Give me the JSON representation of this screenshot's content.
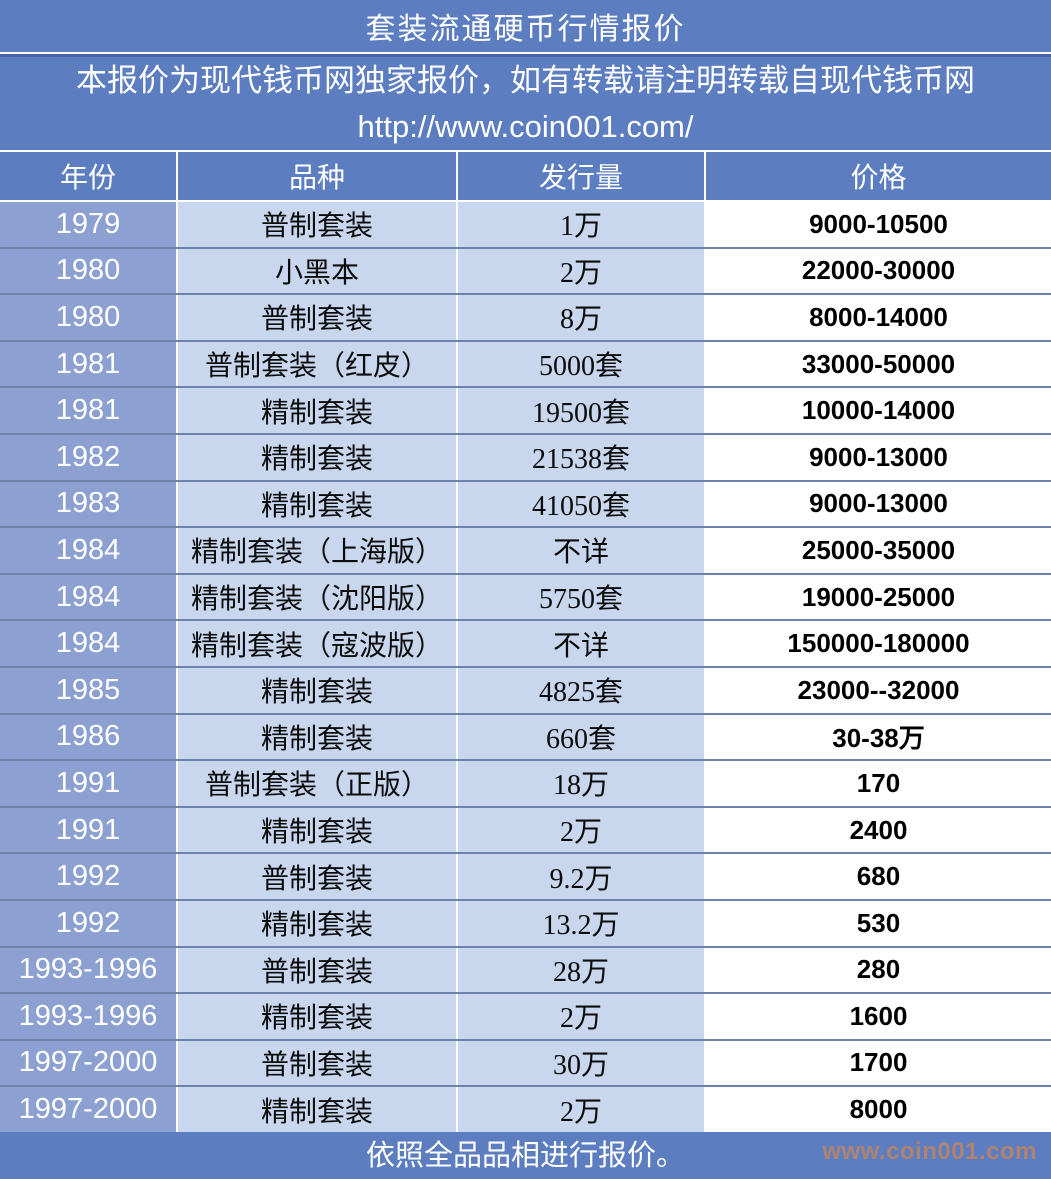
{
  "title": "套装流通硬币行情报价",
  "subtitle": {
    "line1": "本报价为现代钱币网独家报价，如有转载请注明转载自现代钱币网",
    "line2": "http://www.coin001.com/"
  },
  "chart_data": {
    "type": "table",
    "title": "套装流通硬币行情报价",
    "columns": [
      "年份",
      "品种",
      "发行量",
      "价格"
    ],
    "rows": [
      [
        "1979",
        "普制套装",
        "1万",
        "9000-10500"
      ],
      [
        "1980",
        "小黑本",
        "2万",
        "22000-30000"
      ],
      [
        "1980",
        "普制套装",
        "8万",
        "8000-14000"
      ],
      [
        "1981",
        "普制套装（红皮）",
        "5000套",
        "33000-50000"
      ],
      [
        "1981",
        "精制套装",
        "19500套",
        "10000-14000"
      ],
      [
        "1982",
        "精制套装",
        "21538套",
        "9000-13000"
      ],
      [
        "1983",
        "精制套装",
        "41050套",
        "9000-13000"
      ],
      [
        "1984",
        "精制套装（上海版）",
        "不详",
        "25000-35000"
      ],
      [
        "1984",
        "精制套装（沈阳版）",
        "5750套",
        "19000-25000"
      ],
      [
        "1984",
        "精制套装（寇波版）",
        "不详",
        "150000-180000"
      ],
      [
        "1985",
        "精制套装",
        "4825套",
        "23000--32000"
      ],
      [
        "1986",
        "精制套装",
        "660套",
        "30-38万"
      ],
      [
        "1991",
        "普制套装（正版）",
        "18万",
        "170"
      ],
      [
        "1991",
        "精制套装",
        "2万",
        "2400"
      ],
      [
        "1992",
        "普制套装",
        "9.2万",
        "680"
      ],
      [
        "1992",
        "精制套装",
        "13.2万",
        "530"
      ],
      [
        "1993-1996",
        "普制套装",
        "28万",
        "280"
      ],
      [
        "1993-1996",
        "精制套装",
        "2万",
        "1600"
      ],
      [
        "1997-2000",
        "普制套装",
        "30万",
        "1700"
      ],
      [
        "1997-2000",
        "精制套装",
        "2万",
        "8000"
      ]
    ]
  },
  "footer": {
    "note": "依照全品品相进行报价。",
    "watermark": "www.coin001.com"
  },
  "colors": {
    "table_blue": "#5C7EC0",
    "year_column_bg": "#8CA0D2",
    "data_cell_bg": "#C8D7EE",
    "price_cell_bg": "#FFFFFF",
    "divider": "#6D81AB",
    "watermark_orange": "#BE8565"
  }
}
